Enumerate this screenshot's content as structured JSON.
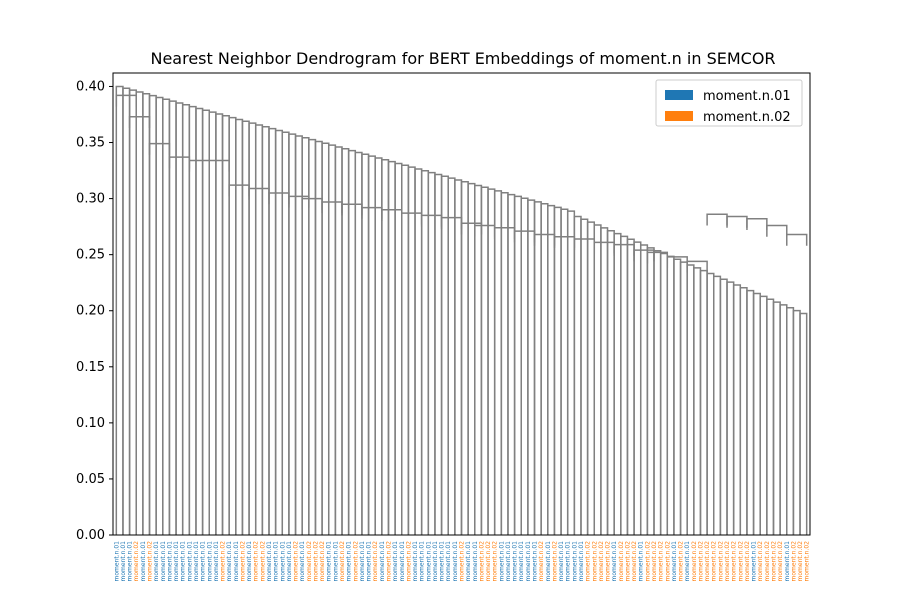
{
  "chart_data": {
    "type": "dendrogram",
    "title": "Nearest Neighbor Dendrogram for BERT Embeddings of moment.n in SEMCOR",
    "xlabel": "",
    "ylabel": "",
    "ylim": [
      0,
      0.412
    ],
    "yticks": [
      "0.00",
      "0.05",
      "0.10",
      "0.15",
      "0.20",
      "0.25",
      "0.30",
      "0.35",
      "0.40"
    ],
    "link_color": "#808080",
    "legend": {
      "placement": "upper right",
      "entries": [
        {
          "label": "moment.n.01",
          "color": "#1f77b4"
        },
        {
          "label": "moment.n.02",
          "color": "#ff7f0e"
        }
      ]
    },
    "leaf_text": "moment.n",
    "leaves": [
      "01",
      "01",
      "01",
      "02",
      "01",
      "02",
      "01",
      "01",
      "01",
      "01",
      "01",
      "01",
      "01",
      "01",
      "01",
      "01",
      "02",
      "01",
      "01",
      "02",
      "01",
      "02",
      "02",
      "01",
      "01",
      "01",
      "01",
      "02",
      "01",
      "02",
      "02",
      "02",
      "01",
      "01",
      "02",
      "01",
      "02",
      "01",
      "01",
      "02",
      "01",
      "02",
      "01",
      "01",
      "02",
      "01",
      "01",
      "01",
      "01",
      "01",
      "01",
      "01",
      "02",
      "01",
      "01",
      "02",
      "02",
      "02",
      "01",
      "01",
      "01",
      "01",
      "01",
      "01",
      "02",
      "01",
      "02",
      "01",
      "01",
      "01",
      "01",
      "02",
      "02",
      "02",
      "02",
      "01",
      "02",
      "02",
      "02",
      "01",
      "02",
      "02",
      "02",
      "02",
      "01",
      "02",
      "01",
      "02",
      "02",
      "02",
      "02",
      "02",
      "02",
      "02",
      "02",
      "02",
      "01",
      "02",
      "02",
      "02",
      "02",
      "01",
      "02",
      "02",
      "02"
    ],
    "merges": [
      {
        "x0": 25.0,
        "x1": 15.0,
        "h": 0.392
      },
      {
        "x0": 25.0,
        "x1": 5.0,
        "h": 0.373
      },
      {
        "x0": 15.0,
        "x1": 5.0,
        "h": 0.349
      },
      {
        "x0": 15.0,
        "x1": 5.0,
        "h": 0.337
      },
      {
        "x0": 25.0,
        "x1": 5.0,
        "h": 0.334
      },
      {
        "x0": 25.0,
        "x1": 5.0,
        "h": 0.334
      },
      {
        "x0": 15.0,
        "x1": 5.0,
        "h": 0.312
      },
      {
        "x0": 25.0,
        "x1": 5.0,
        "h": 0.309
      },
      {
        "x0": 15.0,
        "x1": 5.0,
        "h": 0.305
      },
      {
        "x0": 25.0,
        "x1": 5.0,
        "h": 0.302
      },
      {
        "x0": 15.0,
        "x1": 5.0,
        "h": 0.3
      },
      {
        "x0": 25.0,
        "x1": 5.0,
        "h": 0.297
      },
      {
        "x0": 15.0,
        "x1": 5.0,
        "h": 0.295
      },
      {
        "x0": 25.0,
        "x1": 5.0,
        "h": 0.292
      },
      {
        "x0": 15.0,
        "x1": 5.0,
        "h": 0.29
      },
      {
        "x0": 25.0,
        "x1": 5.0,
        "h": 0.287
      },
      {
        "x0": 15.0,
        "x1": 5.0,
        "h": 0.285
      },
      {
        "x0": 25.0,
        "x1": 5.0,
        "h": 0.283
      },
      {
        "x0": 15.0,
        "x1": 5.0,
        "h": 0.278
      },
      {
        "x0": 25.0,
        "x1": 5.0,
        "h": 0.276
      },
      {
        "x0": 15.0,
        "x1": 5.0,
        "h": 0.274
      },
      {
        "x0": 25.0,
        "x1": 5.0,
        "h": 0.271
      },
      {
        "x0": 15.0,
        "x1": 5.0,
        "h": 0.268
      },
      {
        "x0": 25.0,
        "x1": 5.0,
        "h": 0.266
      },
      {
        "x0": 15.0,
        "x1": 5.0,
        "h": 0.264
      },
      {
        "x0": 25.0,
        "x1": 5.0,
        "h": 0.261
      },
      {
        "x0": 15.0,
        "x1": 5.0,
        "h": 0.259
      },
      {
        "x0": 25.0,
        "x1": 5.0,
        "h": 0.254
      },
      {
        "x0": 15.0,
        "x1": 5.0,
        "h": 0.252
      },
      {
        "x0": 25.0,
        "x1": 5.0,
        "h": 0.248
      },
      {
        "x0": 15.0,
        "x1": 5.0,
        "h": 0.244
      },
      {
        "x0": 25.0,
        "x1": 5.0,
        "h": 0.286
      },
      {
        "x0": 15.0,
        "x1": 5.0,
        "h": 0.284
      },
      {
        "x0": 25.0,
        "x1": 5.0,
        "h": 0.282
      },
      {
        "x0": 15.0,
        "x1": 5.0,
        "h": 0.276
      },
      {
        "x0": 25.0,
        "x1": 5.0,
        "h": 0.268
      }
    ]
  }
}
